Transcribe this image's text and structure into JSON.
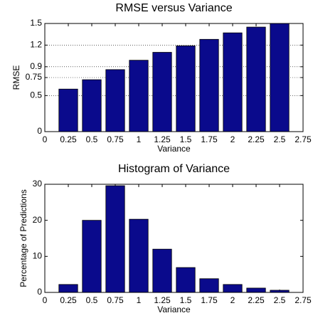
{
  "chart_data": [
    {
      "type": "bar",
      "title": "RMSE versus Variance",
      "x_label": "Variance",
      "y_label": "RMSE",
      "x": [
        0.25,
        0.5,
        0.75,
        1,
        1.25,
        1.5,
        1.75,
        2,
        2.25,
        2.5
      ],
      "values": [
        0.59,
        0.72,
        0.86,
        0.99,
        1.1,
        1.19,
        1.28,
        1.37,
        1.45,
        1.5
      ],
      "color": "#0a0a8c",
      "xlim": [
        0,
        2.75
      ],
      "xticks": [
        0,
        0.25,
        0.5,
        0.75,
        1,
        1.25,
        1.5,
        1.75,
        2,
        2.25,
        2.5,
        2.75
      ],
      "ylim": [
        0,
        1.5
      ],
      "yticks": [
        0,
        0.5,
        0.75,
        0.9,
        1.2,
        1.5
      ],
      "grid": true
    },
    {
      "type": "bar",
      "title": "Histogram of Variance",
      "x_label": "Variance",
      "y_label": "Percentage of Predictions",
      "x": [
        0.25,
        0.5,
        0.75,
        1,
        1.25,
        1.5,
        1.75,
        2,
        2.25,
        2.5
      ],
      "values": [
        2.2,
        20,
        29.6,
        20.3,
        12,
        6.9,
        3.8,
        2.2,
        1.2,
        0.6
      ],
      "color": "#0a0a8c",
      "xlim": [
        0,
        2.75
      ],
      "xticks": [
        0,
        0.25,
        0.5,
        0.75,
        1,
        1.25,
        1.5,
        1.75,
        2,
        2.25,
        2.5,
        2.75
      ],
      "ylim": [
        0,
        30
      ],
      "yticks": [
        0,
        10,
        20,
        30
      ],
      "grid": false
    }
  ]
}
